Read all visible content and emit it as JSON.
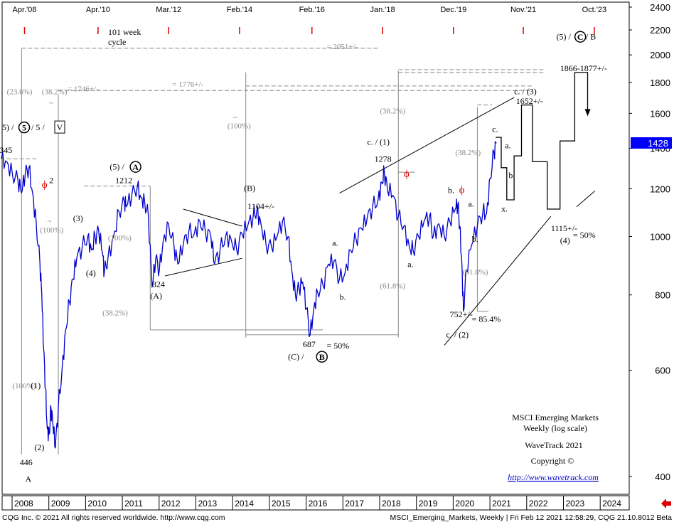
{
  "chart_data": {
    "type": "line",
    "title": "MSCI Emerging Markets",
    "subtitle": "Weekly (log scale)",
    "y_scale": "log",
    "ylim": [
      380,
      2450
    ],
    "yticks": [
      "2400",
      "2200",
      "2000",
      "1800",
      "1600",
      "1400",
      "1200",
      "1000",
      "800",
      "600",
      "400"
    ],
    "last_price": "1428",
    "x_labels": [
      "2008",
      "2009",
      "2010",
      "2011",
      "2012",
      "2013",
      "2014",
      "2015",
      "2016",
      "2017",
      "2018",
      "2019",
      "2020",
      "2021",
      "2022",
      "2023",
      "2024"
    ],
    "cycle_labels": [
      "Apr.'08",
      "Apr.'10",
      "Mar.'12",
      "Feb.'14",
      "Feb.'16",
      "Jan.'18",
      "Dec.'19",
      "Nov.'21",
      "Oct.'23"
    ],
    "cycle_note_1": "101 week",
    "cycle_note_2": "cycle",
    "series": [
      {
        "values": [
          [
            2007.65,
            1345
          ],
          [
            2007.8,
            1330
          ],
          [
            2007.95,
            1270
          ],
          [
            2008.1,
            1240
          ],
          [
            2008.2,
            1180
          ],
          [
            2008.3,
            1270
          ],
          [
            2008.4,
            1300
          ],
          [
            2008.5,
            1180
          ],
          [
            2008.6,
            1050
          ],
          [
            2008.7,
            900
          ],
          [
            2008.75,
            800
          ],
          [
            2008.8,
            650
          ],
          [
            2008.85,
            560
          ],
          [
            2008.9,
            480
          ],
          [
            2008.95,
            470
          ],
          [
            2009.0,
            520
          ],
          [
            2009.05,
            490
          ],
          [
            2009.12,
            446
          ],
          [
            2009.2,
            520
          ],
          [
            2009.3,
            600
          ],
          [
            2009.4,
            700
          ],
          [
            2009.5,
            780
          ],
          [
            2009.6,
            850
          ],
          [
            2009.7,
            920
          ],
          [
            2009.85,
            960
          ],
          [
            2010.0,
            1000
          ],
          [
            2010.1,
            950
          ],
          [
            2010.2,
            1000
          ],
          [
            2010.3,
            1020
          ],
          [
            2010.4,
            940
          ],
          [
            2010.45,
            870
          ],
          [
            2010.55,
            920
          ],
          [
            2010.7,
            1000
          ],
          [
            2010.85,
            1100
          ],
          [
            2011.0,
            1140
          ],
          [
            2011.05,
            1120
          ],
          [
            2011.2,
            1170
          ],
          [
            2011.35,
            1212
          ],
          [
            2011.45,
            1160
          ],
          [
            2011.55,
            1140
          ],
          [
            2011.65,
            1080
          ],
          [
            2011.75,
            824
          ],
          [
            2011.85,
            920
          ],
          [
            2011.95,
            880
          ],
          [
            2012.05,
            980
          ],
          [
            2012.2,
            1050
          ],
          [
            2012.35,
            960
          ],
          [
            2012.45,
            900
          ],
          [
            2012.6,
            970
          ],
          [
            2012.75,
            1020
          ],
          [
            2012.9,
            1010
          ],
          [
            2013.05,
            1060
          ],
          [
            2013.2,
            1020
          ],
          [
            2013.35,
            1000
          ],
          [
            2013.45,
            900
          ],
          [
            2013.6,
            950
          ],
          [
            2013.75,
            1000
          ],
          [
            2013.9,
            990
          ],
          [
            2014.05,
            950
          ],
          [
            2014.2,
            1010
          ],
          [
            2014.35,
            1040
          ],
          [
            2014.5,
            1080
          ],
          [
            2014.6,
            1104
          ],
          [
            2014.7,
            1060
          ],
          [
            2014.85,
            970
          ],
          [
            2015.0,
            960
          ],
          [
            2015.15,
            1000
          ],
          [
            2015.3,
            1060
          ],
          [
            2015.45,
            1000
          ],
          [
            2015.55,
            880
          ],
          [
            2015.65,
            800
          ],
          [
            2015.75,
            820
          ],
          [
            2015.85,
            840
          ],
          [
            2015.95,
            760
          ],
          [
            2016.05,
            687
          ],
          [
            2016.15,
            760
          ],
          [
            2016.25,
            810
          ],
          [
            2016.4,
            830
          ],
          [
            2016.55,
            900
          ],
          [
            2016.7,
            910
          ],
          [
            2016.85,
            850
          ],
          [
            2017.0,
            870
          ],
          [
            2017.15,
            950
          ],
          [
            2017.3,
            990
          ],
          [
            2017.45,
            1030
          ],
          [
            2017.6,
            1070
          ],
          [
            2017.75,
            1120
          ],
          [
            2017.9,
            1150
          ],
          [
            2018.0,
            1230
          ],
          [
            2018.07,
            1278
          ],
          [
            2018.15,
            1200
          ],
          [
            2018.3,
            1170
          ],
          [
            2018.45,
            1080
          ],
          [
            2018.6,
            1040
          ],
          [
            2018.75,
            960
          ],
          [
            2018.85,
            950
          ],
          [
            2019.0,
            1000
          ],
          [
            2019.15,
            1060
          ],
          [
            2019.3,
            1080
          ],
          [
            2019.4,
            1000
          ],
          [
            2019.55,
            1050
          ],
          [
            2019.7,
            1000
          ],
          [
            2019.85,
            1060
          ],
          [
            2020.0,
            1110
          ],
          [
            2020.07,
            1130
          ],
          [
            2020.12,
            1040
          ],
          [
            2020.18,
            900
          ],
          [
            2020.22,
            752
          ],
          [
            2020.3,
            880
          ],
          [
            2020.45,
            970
          ],
          [
            2020.6,
            1040
          ],
          [
            2020.75,
            1100
          ],
          [
            2020.85,
            1090
          ],
          [
            2020.95,
            1250
          ],
          [
            2021.05,
            1380
          ],
          [
            2021.12,
            1428
          ]
        ]
      }
    ],
    "annotations": {
      "low_446": "446",
      "wave_A_bottom": "A",
      "wave_1": "(1)",
      "wave_2": "(2)",
      "wave_3": "(3)",
      "wave_4": "(4)",
      "wave_A": "(A)",
      "wave_B": "(B)",
      "wave_5A": "(5) / ",
      "circ_A": "A",
      "circ_B": "B",
      "circ_5": "5",
      "circ_C": "C",
      "tri_V": "V",
      "left_wave_label_a": "5) / ",
      "left_wave_label_b": " / 5 / ",
      "v1345": "345",
      "v1212": "1212",
      "v824": "824",
      "v1104": "1104+/-",
      "v687": "687",
      "eq50_2016": "= 50%",
      "wave_C_B": "(C) / ",
      "v1278": "1278",
      "c_1": "c. / (1)",
      "c_3": "c. / (3)",
      "c_2": "c. / (2)",
      "v752": "752+/-",
      "eq854": "= 85.4%",
      "v1652": "1652+/-",
      "v1866": "1866-1877+/-",
      "wave5_C_B_a": "(5) / ",
      "wave5_C_B_b": " / B",
      "v1115": "1115+/-",
      "wave_4_final": "(4)",
      "eq50_final": "= 50%",
      "eq1746": "= 1746+/-",
      "eq1776": "= 1776+/-",
      "eq2051": "= 2051+/-",
      "a": "a.",
      "b": "b.",
      "c": "c.",
      "x": "x.",
      "phi": "ϕ",
      "phi2_sup": "2",
      "tilde": "~",
      "f236": "(23.6%)",
      "f382": "(38.2%)",
      "f100": "(100%)",
      "f618": "(61.8%)"
    },
    "legend_box": {
      "line1": "MSCI Emerging Markets",
      "line2": "Weekly (log scale)",
      "line3": "WaveTrack 2021",
      "line4": "Copyright ©",
      "line5": "http://www.wavetrack.com"
    }
  },
  "footer": {
    "left": "CQG Inc. © 2021 All rights reserved worldwide. http://www.cqg.com",
    "right": "MSCI_Emerging_Markets, Weekly | Fri Feb 12 2021 12:58:29, CQG 21.10.8012 Beta"
  },
  "colors": {
    "price": "#0000cc",
    "cycle_tick": "#dd0000",
    "price_box": "#0000ff",
    "fib": "#888888"
  }
}
